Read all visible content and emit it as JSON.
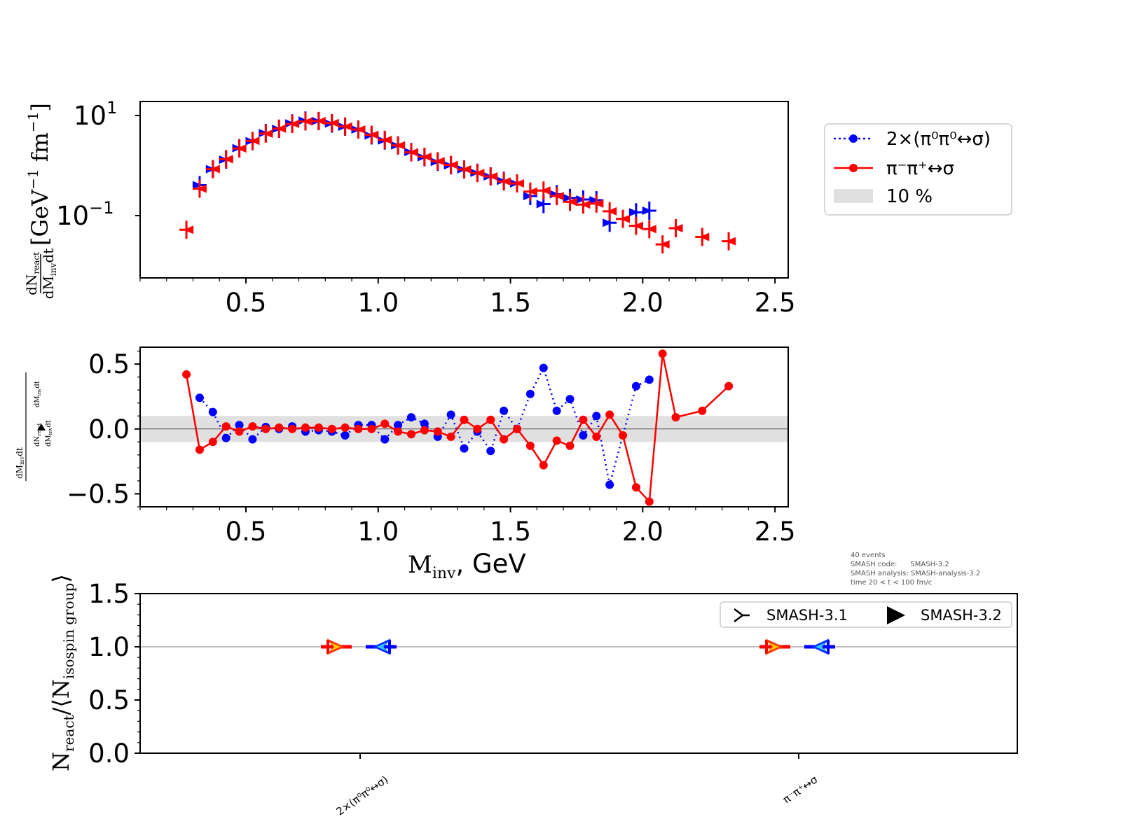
{
  "colors": {
    "blue": "#0000ff",
    "red": "#ff0000",
    "band": "#e0e0e0",
    "axis": "#000000"
  },
  "chart_data": [
    {
      "type": "scatter",
      "name": "spectrum",
      "yscale": "log",
      "xlim": [
        0.1,
        2.55
      ],
      "ylim": [
        0.0055,
        35
      ],
      "xticks": [
        "0.5",
        "1.0",
        "1.5",
        "2.0",
        "2.5"
      ],
      "ytick_base": "10",
      "ytick_exps": [
        "1",
        "−1"
      ],
      "ylabel_frac_num": "dN",
      "ylabel_frac_num_sub": "react",
      "ylabel_frac_den": "dM",
      "ylabel_frac_den_sub": "inv",
      "ylabel_frac_den_tail": "dt",
      "ylabel_units": "[GeV",
      "ylabel_units_exp1": "−1",
      "ylabel_units_mid": "fm",
      "ylabel_units_exp2": "−1",
      "ylabel_units_end": "]",
      "series": [
        {
          "name": "2×(π⁰π⁰↔σ)",
          "x": [
            0.325,
            0.375,
            0.425,
            0.475,
            0.525,
            0.575,
            0.625,
            0.675,
            0.725,
            0.775,
            0.825,
            0.875,
            0.925,
            0.975,
            1.025,
            1.075,
            1.125,
            1.175,
            1.225,
            1.275,
            1.325,
            1.375,
            1.425,
            1.475,
            1.525,
            1.575,
            1.625,
            1.675,
            1.725,
            1.775,
            1.825,
            1.875,
            1.975,
            2.025
          ],
          "y": [
            0.55,
            1.22,
            1.95,
            3.45,
            4.9,
            7.3,
            9.0,
            11.8,
            13.6,
            13.3,
            11.7,
            10.0,
            8.7,
            6.5,
            5.05,
            3.95,
            2.85,
            2.2,
            1.75,
            1.47,
            1.2,
            1.02,
            0.85,
            0.68,
            0.6,
            0.32,
            0.215,
            0.35,
            0.29,
            0.27,
            0.26,
            0.085,
            0.143,
            0.155
          ]
        },
        {
          "name": "π⁻π⁺↔σ",
          "x": [
            0.275,
            0.325,
            0.375,
            0.425,
            0.475,
            0.525,
            0.575,
            0.625,
            0.675,
            0.725,
            0.775,
            0.825,
            0.875,
            0.925,
            0.975,
            1.025,
            1.075,
            1.125,
            1.175,
            1.225,
            1.275,
            1.325,
            1.375,
            1.425,
            1.475,
            1.525,
            1.575,
            1.625,
            1.675,
            1.725,
            1.775,
            1.825,
            1.875,
            1.925,
            1.975,
            2.025,
            2.075,
            2.125,
            2.225,
            2.325
          ],
          "y": [
            0.06,
            0.46,
            1.22,
            2.0,
            3.4,
            4.95,
            7.1,
            9.1,
            11.5,
            13.0,
            13.2,
            12.0,
            10.1,
            8.7,
            6.7,
            5.2,
            3.95,
            2.8,
            2.25,
            1.8,
            1.5,
            1.2,
            1.0,
            0.85,
            0.66,
            0.6,
            0.4,
            0.42,
            0.32,
            0.24,
            0.21,
            0.22,
            0.15,
            0.103,
            0.073,
            0.062,
            0.029,
            0.065,
            0.042,
            0.034
          ]
        }
      ]
    },
    {
      "type": "line",
      "name": "ratio",
      "xlim": [
        0.1,
        2.55
      ],
      "ylim": [
        -0.6,
        0.63
      ],
      "xticks": [
        "0.5",
        "1.0",
        "1.5",
        "2.0",
        "2.5"
      ],
      "yticks": [
        "0.5",
        "0.0",
        "−0.5"
      ],
      "xlabel_main": "M",
      "xlabel_sub": "inv",
      "xlabel_tail": ", GeV",
      "band": [
        -0.1,
        0.1
      ],
      "series": [
        {
          "name": "2×(π⁰π⁰↔σ)",
          "style": "dotted",
          "x": [
            0.325,
            0.375,
            0.425,
            0.475,
            0.525,
            0.575,
            0.625,
            0.675,
            0.725,
            0.775,
            0.825,
            0.875,
            0.925,
            0.975,
            1.025,
            1.075,
            1.125,
            1.175,
            1.225,
            1.275,
            1.325,
            1.375,
            1.425,
            1.475,
            1.525,
            1.575,
            1.625,
            1.675,
            1.725,
            1.775,
            1.825,
            1.875,
            1.975,
            2.025
          ],
          "y": [
            0.24,
            0.13,
            -0.07,
            0.03,
            -0.08,
            0.015,
            0.0,
            0.02,
            -0.02,
            -0.01,
            -0.02,
            -0.05,
            0.03,
            0.03,
            -0.08,
            0.03,
            0.09,
            0.04,
            -0.06,
            0.11,
            -0.15,
            -0.02,
            -0.17,
            0.14,
            0.0,
            0.27,
            0.47,
            0.14,
            0.23,
            -0.05,
            0.1,
            -0.43,
            0.33,
            0.38
          ]
        },
        {
          "name": "π⁻π⁺↔σ",
          "style": "solid",
          "x": [
            0.275,
            0.325,
            0.375,
            0.425,
            0.475,
            0.525,
            0.575,
            0.625,
            0.675,
            0.725,
            0.775,
            0.825,
            0.875,
            0.925,
            0.975,
            1.025,
            1.075,
            1.125,
            1.175,
            1.225,
            1.275,
            1.325,
            1.375,
            1.425,
            1.475,
            1.525,
            1.575,
            1.625,
            1.675,
            1.725,
            1.775,
            1.825,
            1.875,
            1.925,
            1.975,
            2.025,
            2.075,
            2.125,
            2.225,
            2.325
          ],
          "y": [
            0.42,
            -0.16,
            -0.1,
            0.02,
            -0.02,
            0.02,
            0.0,
            0.01,
            0.0,
            0.01,
            0.01,
            0.0,
            0.01,
            0.0,
            0.0,
            0.04,
            -0.02,
            -0.04,
            -0.01,
            -0.02,
            -0.06,
            0.07,
            0.0,
            0.07,
            -0.08,
            0.0,
            -0.13,
            -0.28,
            -0.09,
            -0.13,
            0.07,
            -0.06,
            0.11,
            -0.05,
            -0.45,
            -0.56,
            0.58,
            0.09,
            0.14,
            0.33
          ]
        }
      ]
    },
    {
      "type": "scatter",
      "name": "normalization",
      "ylim": [
        0.0,
        1.5
      ],
      "yticks": [
        "1.5",
        "1.0",
        "0.5",
        "0.0"
      ],
      "categories": [
        "2×(π⁰π⁰↔σ)",
        "π⁻π⁺↔σ"
      ],
      "ylabel_main": "N",
      "ylabel_sub1": "react",
      "ylabel_mid": "/⟨N",
      "ylabel_sub2": "isospin group",
      "ylabel_end": "⟩",
      "reference_line": 1.0,
      "series": [
        {
          "name": "SMASH-3.1",
          "values": [
            1.0,
            1.0
          ]
        },
        {
          "name": "SMASH-3.2",
          "values": [
            1.0,
            1.0
          ]
        }
      ]
    }
  ],
  "legend_top": {
    "items": [
      "2×(π⁰π⁰↔σ)",
      "π⁻π⁺↔σ",
      "10 %"
    ]
  },
  "legend_bottom": {
    "items": [
      "SMASH-3.1",
      "SMASH-3.2"
    ]
  },
  "info_lines": [
    "40 events",
    "SMASH code:      SMASH-3.2",
    "SMASH analysis: SMASH-analysis-3.2",
    "time 20 < t < 100 fm/c"
  ]
}
